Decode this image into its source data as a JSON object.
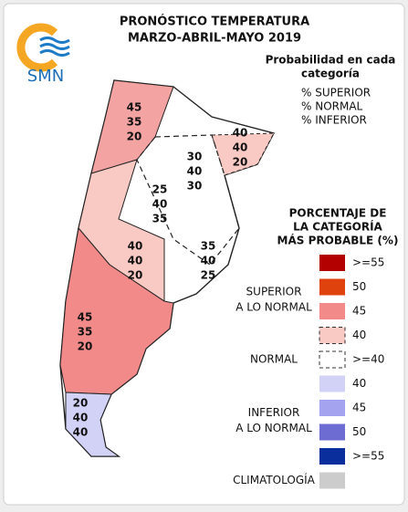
{
  "header": {
    "title_lines": [
      "PRONÓSTICO TEMPERATURA",
      "MARZO-ABRIL-MAYO 2019"
    ],
    "logo": "SMN"
  },
  "key": {
    "title_lines": [
      "Probabilidad en cada",
      "categoría"
    ],
    "lines": [
      "% SUPERIOR",
      "% NORMAL",
      "% INFERIOR"
    ]
  },
  "regions": [
    {
      "values": [
        45,
        35,
        20
      ]
    },
    {
      "values": [
        40,
        40,
        20
      ]
    },
    {
      "values": [
        30,
        40,
        30
      ]
    },
    {
      "values": [
        25,
        40,
        35
      ]
    },
    {
      "values": [
        40,
        40,
        20
      ]
    },
    {
      "values": [
        35,
        40,
        25
      ]
    },
    {
      "values": [
        45,
        35,
        20
      ]
    },
    {
      "values": [
        20,
        40,
        40
      ]
    }
  ],
  "legend": {
    "title_lines": [
      "PORCENTAJE DE",
      "LA CATEGORÍA",
      "MÁS PROBABLE (%)"
    ],
    "groups": [
      {
        "label_lines": [
          "SUPERIOR",
          "A LO NORMAL"
        ],
        "items": [
          {
            "label": ">=55",
            "color": "#b30000"
          },
          {
            "label": "50",
            "color": "#e0420e"
          },
          {
            "label": "45",
            "color": "#f28a8a"
          },
          {
            "label": "40",
            "color": "#f9c9c4",
            "style": "dashed"
          }
        ]
      },
      {
        "label_lines": [
          "NORMAL"
        ],
        "items": [
          {
            "label": ">=40",
            "color": "#ffffff",
            "style": "dashed"
          }
        ]
      },
      {
        "label_lines": [
          "INFERIOR",
          "A LO NORMAL"
        ],
        "items": [
          {
            "label": "40",
            "color": "#d2d2f7"
          },
          {
            "label": "45",
            "color": "#a3a3f0"
          },
          {
            "label": "50",
            "color": "#6c6cd2"
          },
          {
            "label": ">=55",
            "color": "#0a2f9c"
          }
        ]
      },
      {
        "label_lines": [
          "CLIMATOLOGÍA"
        ],
        "items": [
          {
            "label": null,
            "color": "#cccccc"
          }
        ]
      }
    ]
  }
}
